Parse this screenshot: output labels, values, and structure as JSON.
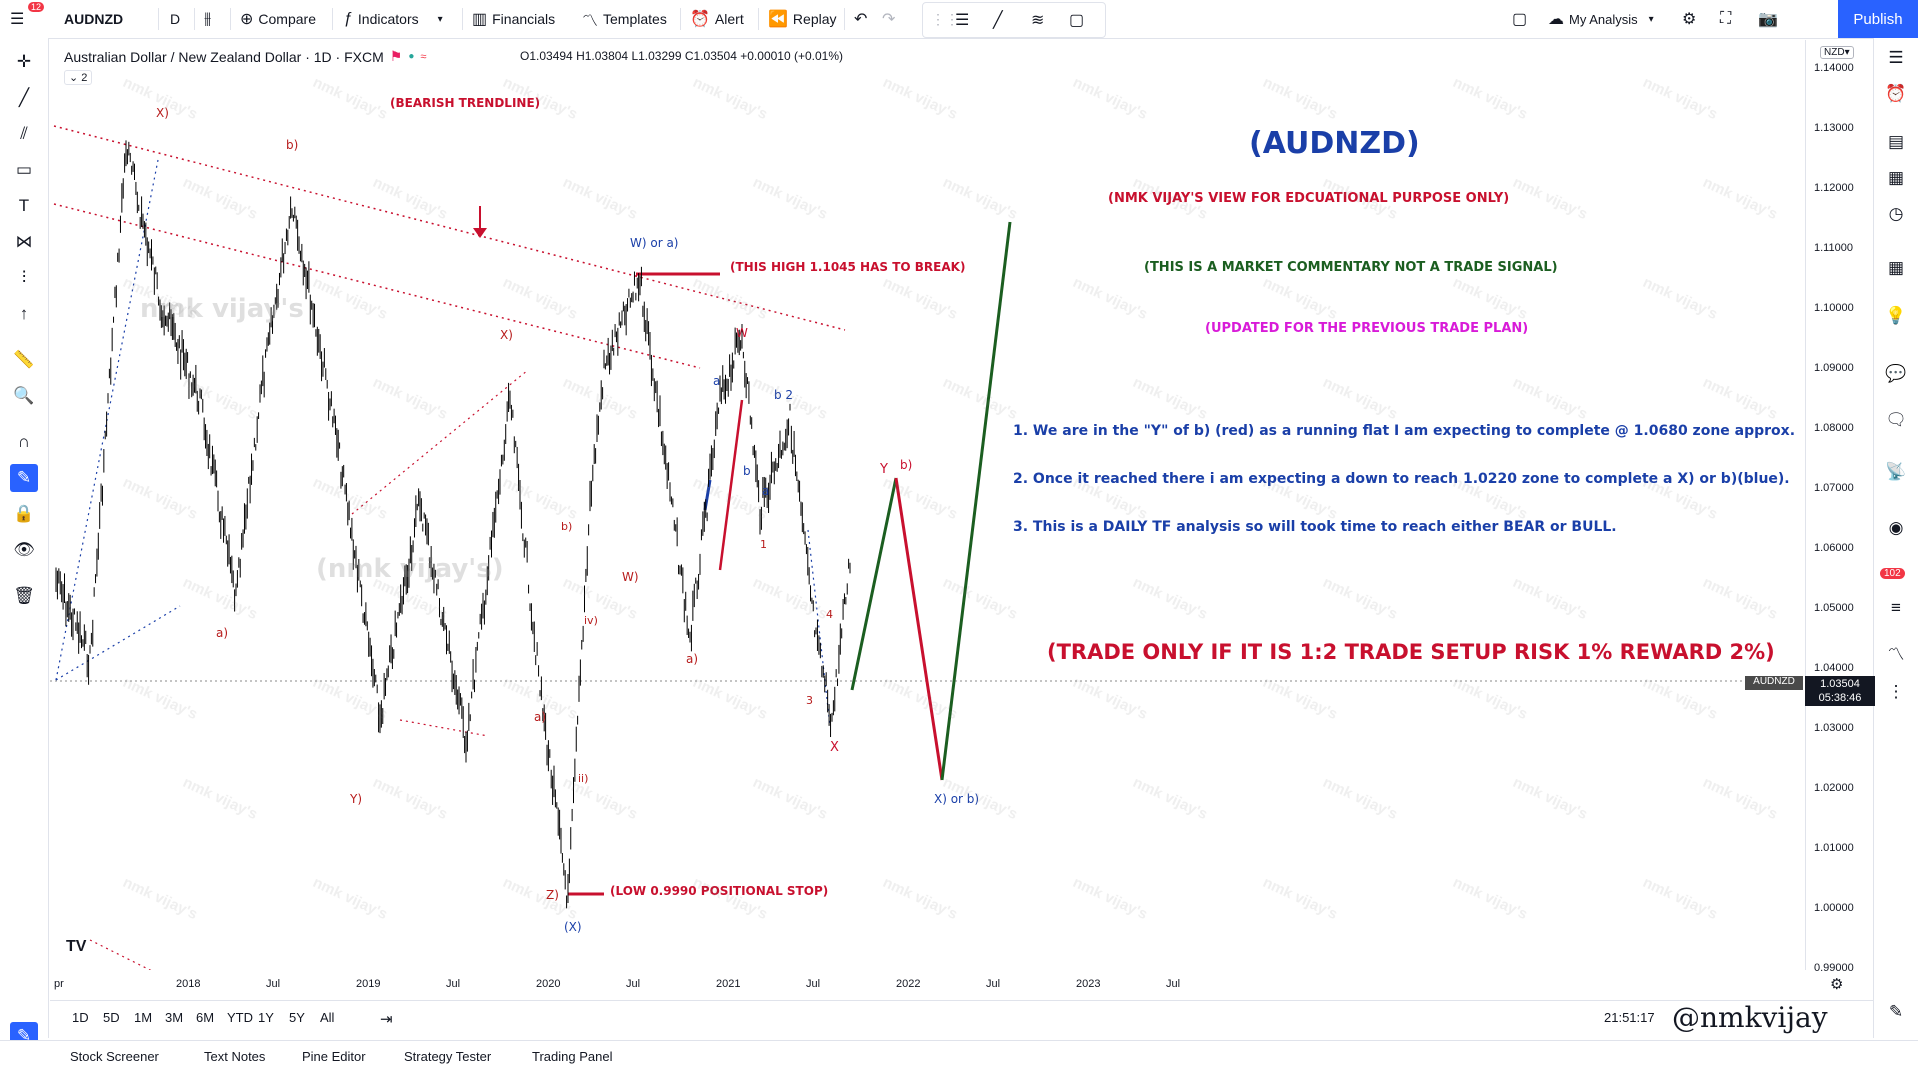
{
  "topbar": {
    "notif_count": "12",
    "symbol": "AUDNZD",
    "interval": "D",
    "compare": "Compare",
    "indicators": "Indicators",
    "financials": "Financials",
    "templates": "Templates",
    "alert": "Alert",
    "replay": "Replay",
    "my_analysis": "My Analysis",
    "publish": "Publish"
  },
  "legend": {
    "title": "Australian Dollar / New Zealand Dollar · 1D · FXCM",
    "open": "O1.03494",
    "high": "H1.03804",
    "low": "L1.03299",
    "close": "C1.03504",
    "change": "+0.00010 (+0.01%)",
    "indicator_count": "2"
  },
  "yaxis": {
    "currency": "NZD",
    "ticks": [
      "1.14000",
      "1.13000",
      "1.12000",
      "1.11000",
      "1.10000",
      "1.09000",
      "1.08000",
      "1.07000",
      "1.06000",
      "1.05000",
      "1.04000",
      "1.03000",
      "1.02000",
      "1.01000",
      "1.00000",
      "0.99000"
    ],
    "last_price": "1.03504",
    "countdown": "05:38:46",
    "symbol_tag": "AUDNZD"
  },
  "xaxis": {
    "ticks": [
      "pr",
      "2018",
      "Jul",
      "2019",
      "Jul",
      "2020",
      "Jul",
      "2021",
      "Jul",
      "2022",
      "Jul",
      "2023",
      "Jul"
    ]
  },
  "bottombar": {
    "ranges": [
      "1D",
      "5D",
      "1M",
      "3M",
      "6M",
      "YTD",
      "1Y",
      "5Y",
      "All"
    ],
    "time": "21:51:17",
    "signature": "@nmkvijay"
  },
  "panels": {
    "tabs": [
      "Stock Screener",
      "Text Notes",
      "Pine Editor",
      "Strategy Tester",
      "Trading Panel"
    ]
  },
  "annotations": {
    "title": "(AUDNZD)",
    "view": "(NMK VIJAY'S VIEW FOR EDCUATIONAL PURPOSE ONLY)",
    "commentary": "(THIS IS A MARKET COMMENTARY NOT A TRADE SIGNAL)",
    "updated": "(UPDATED FOR THE PREVIOUS TRADE PLAN)",
    "point1": "1. We are in the \"Y\" of b) (red) as a running flat I am expecting to complete @ 1.0680 zone approx.",
    "point2": "2. Once it reached there i am expecting a down to reach 1.0220 zone to complete a X) or b)(blue).",
    "point3": "3. This is a DAILY TF analysis so will took time to reach either BEAR or BULL.",
    "trade": "(TRADE ONLY IF IT IS 1:2 TRADE SETUP RISK 1% REWARD 2%)",
    "bearish": "(BEARISH TRENDLINE)",
    "high_break": "(THIS HIGH 1.1045 HAS TO BREAK)",
    "low_stop": "(LOW 0.9990 POSITIONAL STOP)",
    "watermark": "nmk vijay's",
    "labels": {
      "X1": "X)",
      "b1": "b)",
      "a1": "a)",
      "Y1": "Y)",
      "X2": "X)",
      "a2": "a)",
      "b2": "b)",
      "Z": "Z)",
      "XX": "(X)",
      "iv": "iv)",
      "ii": "ii)",
      "W": "W)",
      "a3": "a)",
      "Wora": "W) or a)",
      "Wred": "W",
      "a_s": "a",
      "b_s": "b",
      "b2lab": "b 2",
      "a_s2": "a",
      "one": "1",
      "three": "3",
      "four": "4",
      "Xbot": "X",
      "Y": "Y",
      "b3": "b)",
      "Xorb": "X) or b)"
    }
  },
  "colors": {
    "red": "#c8102e",
    "darkred": "#b71c1c",
    "blue": "#1a3fa8",
    "green": "#1b5e20",
    "magenta": "#d81bd8",
    "accent": "#2962ff"
  }
}
